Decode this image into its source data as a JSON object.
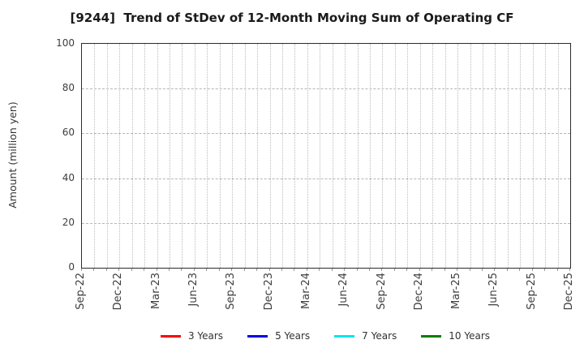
{
  "figure": {
    "title": "[9244]  Trend of StDev of 12-Month Moving Sum of Operating CF",
    "y_axis": {
      "label": "Amount (million yen)",
      "ticks": [
        0,
        20,
        40,
        60,
        80,
        100
      ],
      "min": 0,
      "max": 100
    },
    "x_axis": {
      "tick_labels": [
        "Sep-22",
        "Dec-22",
        "Mar-23",
        "Jun-23",
        "Sep-23",
        "Dec-23",
        "Mar-24",
        "Jun-24",
        "Sep-24",
        "Dec-24",
        "Mar-25",
        "Jun-25",
        "Sep-25",
        "Dec-25"
      ],
      "months_total": 39,
      "label_every_months": 3
    },
    "grid": {
      "vertical_style": "dotted",
      "horizontal_style": "dashed",
      "vertical_color": "#bdbdbd",
      "horizontal_color": "#b5b5b5"
    },
    "legend": {
      "items": [
        {
          "label": "3 Years",
          "color": "#ff0000"
        },
        {
          "label": "5 Years",
          "color": "#0000ee"
        },
        {
          "label": "7 Years",
          "color": "#00e5ee"
        },
        {
          "label": "10 Years",
          "color": "#007f00"
        }
      ]
    }
  },
  "chart_data": {
    "type": "line",
    "title": "[9244]  Trend of StDev of 12-Month Moving Sum of Operating CF",
    "xlabel": "",
    "ylabel": "Amount (million yen)",
    "ylim": [
      0,
      100
    ],
    "yticks": [
      0,
      20,
      40,
      60,
      80,
      100
    ],
    "categories": [
      "Sep-22",
      "Dec-22",
      "Mar-23",
      "Jun-23",
      "Sep-23",
      "Dec-23",
      "Mar-24",
      "Jun-24",
      "Sep-24",
      "Dec-24",
      "Mar-25",
      "Jun-25",
      "Sep-25",
      "Dec-25"
    ],
    "series": [
      {
        "name": "3 Years",
        "color": "#ff0000",
        "values": []
      },
      {
        "name": "5 Years",
        "color": "#0000ee",
        "values": []
      },
      {
        "name": "7 Years",
        "color": "#00e5ee",
        "values": []
      },
      {
        "name": "10 Years",
        "color": "#007f00",
        "values": []
      }
    ],
    "grid": true,
    "legend_position": "bottom",
    "plot_area_empty": true
  }
}
